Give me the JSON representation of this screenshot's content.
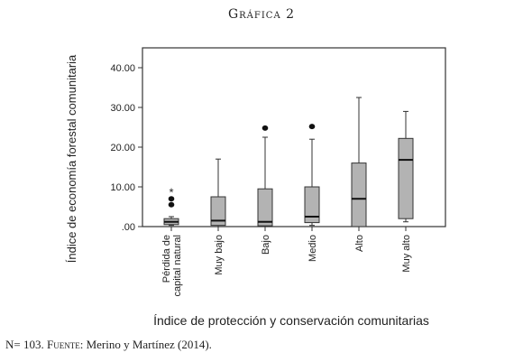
{
  "figure": {
    "title": "Gráfica 2",
    "note_n": "N= 103.",
    "note_source_label": "Fuente:",
    "note_source": "Merino y Martínez (2014)."
  },
  "chart_data": {
    "type": "boxplot",
    "xlabel": "Índice de protección y conservación comunitarias",
    "ylabel": "Índice de economía forestal comunitaria",
    "ylim": [
      0,
      45
    ],
    "yticks": [
      0,
      10,
      20,
      30,
      40
    ],
    "ytick_labels": [
      ".00",
      "10.00",
      "20.00",
      "30.00",
      "40.00"
    ],
    "grid": false,
    "fill_color": "#b3b3b3",
    "categories": [
      "Pérdida de capital natural",
      "Muy bajo",
      "Bajo",
      "Medio",
      "Alto",
      "Muy alto"
    ],
    "boxes": [
      {
        "whisker_low": 0.3,
        "q1": 0.5,
        "median": 1.2,
        "q3": 2.0,
        "whisker_high": 2.5,
        "outliers": [
          5.5,
          7.0
        ],
        "extremes": [
          9.0
        ]
      },
      {
        "whisker_low": 0.0,
        "q1": 0.3,
        "median": 1.5,
        "q3": 7.5,
        "whisker_high": 17.0,
        "outliers": [],
        "extremes": []
      },
      {
        "whisker_low": 0.0,
        "q1": 0.2,
        "median": 1.2,
        "q3": 9.5,
        "whisker_high": 22.5,
        "outliers": [
          24.8
        ],
        "extremes": []
      },
      {
        "whisker_low": 0.3,
        "q1": 1.0,
        "median": 2.5,
        "q3": 10.0,
        "whisker_high": 22.0,
        "outliers": [
          25.2
        ],
        "extremes": []
      },
      {
        "whisker_low": 0.0,
        "q1": 0.0,
        "median": 7.0,
        "q3": 16.0,
        "whisker_high": 32.5,
        "outliers": [],
        "extremes": []
      },
      {
        "whisker_low": 1.2,
        "q1": 2.0,
        "median": 16.8,
        "q3": 22.2,
        "whisker_high": 29.0,
        "outliers": [],
        "extremes": []
      }
    ]
  }
}
